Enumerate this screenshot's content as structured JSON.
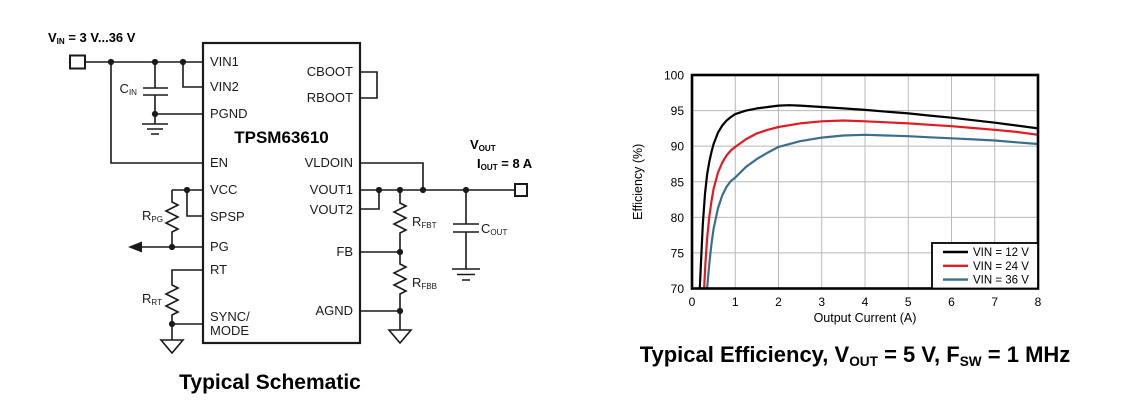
{
  "schematic": {
    "caption": "Typical Schematic",
    "ic_name": "TPSM63610",
    "pins_left": [
      "VIN1",
      "VIN2",
      "PGND",
      "EN",
      "VCC",
      "SPSP",
      "PG",
      "RT"
    ],
    "pin_sync_line1": "SYNC/",
    "pin_sync_line2": "MODE",
    "pins_right": [
      "CBOOT",
      "RBOOT",
      "VLDOIN",
      "VOUT1",
      "VOUT2",
      "FB",
      "AGND"
    ],
    "vin_source": {
      "pre": "V",
      "sub": "IN",
      "post": " = 3 V...36 V"
    },
    "cin": {
      "pre": "C",
      "sub": "IN"
    },
    "rpg": {
      "pre": "R",
      "sub": "PG"
    },
    "rrt": {
      "pre": "R",
      "sub": "RT"
    },
    "rfbt": {
      "pre": "R",
      "sub": "FBT"
    },
    "rfbb": {
      "pre": "R",
      "sub": "FBB"
    },
    "cout": {
      "pre": "C",
      "sub": "OUT"
    },
    "vout": {
      "pre": "V",
      "sub": "OUT"
    },
    "iout": {
      "pre": "I",
      "sub": "OUT",
      "post": " = 8 A"
    },
    "line_color": "#1a1a1a"
  },
  "chart_data": {
    "type": "line",
    "title": "Typical Efficiency, VOUT = 5 V, FSW = 1 MHz",
    "title_parts": {
      "p1": "Typical Efficiency, V",
      "s1": "OUT",
      "p2": " = 5 V, F",
      "s2": "SW",
      "p3": " = 1 MHz"
    },
    "xlabel": "Output Current (A)",
    "ylabel": "Efficiency (%)",
    "xlim": [
      0,
      8
    ],
    "ylim": [
      70,
      100
    ],
    "xticks": [
      0,
      1,
      2,
      3,
      4,
      5,
      6,
      7,
      8
    ],
    "yticks": [
      70,
      75,
      80,
      85,
      90,
      95,
      100
    ],
    "grid": true,
    "grid_color": "#b8b8b8",
    "border_color": "#000000",
    "legend_position": "bottom-right",
    "series": [
      {
        "name": "VIN = 12 V",
        "color": "#000000",
        "points": [
          [
            0.18,
            70
          ],
          [
            0.21,
            74
          ],
          [
            0.25,
            79
          ],
          [
            0.3,
            83.3
          ],
          [
            0.35,
            86
          ],
          [
            0.4,
            87.8
          ],
          [
            0.45,
            89.2
          ],
          [
            0.5,
            90.3
          ],
          [
            0.6,
            91.9
          ],
          [
            0.7,
            92.9
          ],
          [
            0.8,
            93.6
          ],
          [
            0.9,
            94.1
          ],
          [
            1,
            94.5
          ],
          [
            1.25,
            95
          ],
          [
            1.5,
            95.3
          ],
          [
            1.75,
            95.5
          ],
          [
            2,
            95.7
          ],
          [
            2.25,
            95.75
          ],
          [
            2.5,
            95.7
          ],
          [
            3,
            95.5
          ],
          [
            3.5,
            95.3
          ],
          [
            4,
            95.1
          ],
          [
            4.5,
            94.85
          ],
          [
            5,
            94.6
          ],
          [
            5.5,
            94.3
          ],
          [
            6,
            94
          ],
          [
            6.5,
            93.65
          ],
          [
            7,
            93.3
          ],
          [
            7.5,
            92.9
          ],
          [
            8,
            92.5
          ]
        ]
      },
      {
        "name": "VIN = 24 V",
        "color": "#e01b23",
        "points": [
          [
            0.28,
            70
          ],
          [
            0.31,
            73.5
          ],
          [
            0.35,
            77
          ],
          [
            0.4,
            80.1
          ],
          [
            0.45,
            82.3
          ],
          [
            0.5,
            84
          ],
          [
            0.6,
            86.3
          ],
          [
            0.7,
            87.7
          ],
          [
            0.8,
            88.7
          ],
          [
            0.9,
            89.4
          ],
          [
            1,
            89.9
          ],
          [
            1.25,
            91
          ],
          [
            1.5,
            91.8
          ],
          [
            1.75,
            92.3
          ],
          [
            2,
            92.7
          ],
          [
            2.5,
            93.2
          ],
          [
            3,
            93.5
          ],
          [
            3.5,
            93.6
          ],
          [
            4,
            93.5
          ],
          [
            4.5,
            93.35
          ],
          [
            5,
            93.2
          ],
          [
            5.5,
            93
          ],
          [
            6,
            92.8
          ],
          [
            6.5,
            92.55
          ],
          [
            7,
            92.3
          ],
          [
            7.5,
            92
          ],
          [
            8,
            91.6
          ]
        ]
      },
      {
        "name": "VIN = 36 V",
        "color": "#3b6e8a",
        "points": [
          [
            0.35,
            70
          ],
          [
            0.4,
            73.5
          ],
          [
            0.45,
            76.3
          ],
          [
            0.5,
            78.4
          ],
          [
            0.6,
            81.3
          ],
          [
            0.7,
            83.1
          ],
          [
            0.8,
            84.3
          ],
          [
            0.9,
            85.1
          ],
          [
            1,
            85.6
          ],
          [
            1.25,
            87.1
          ],
          [
            1.5,
            88.2
          ],
          [
            1.75,
            89.1
          ],
          [
            2,
            89.9
          ],
          [
            2.5,
            90.7
          ],
          [
            3,
            91.2
          ],
          [
            3.5,
            91.5
          ],
          [
            4,
            91.6
          ],
          [
            4.5,
            91.5
          ],
          [
            5,
            91.4
          ],
          [
            5.5,
            91.25
          ],
          [
            6,
            91.1
          ],
          [
            6.5,
            90.95
          ],
          [
            7,
            90.8
          ],
          [
            7.5,
            90.55
          ],
          [
            8,
            90.3
          ]
        ]
      }
    ]
  }
}
